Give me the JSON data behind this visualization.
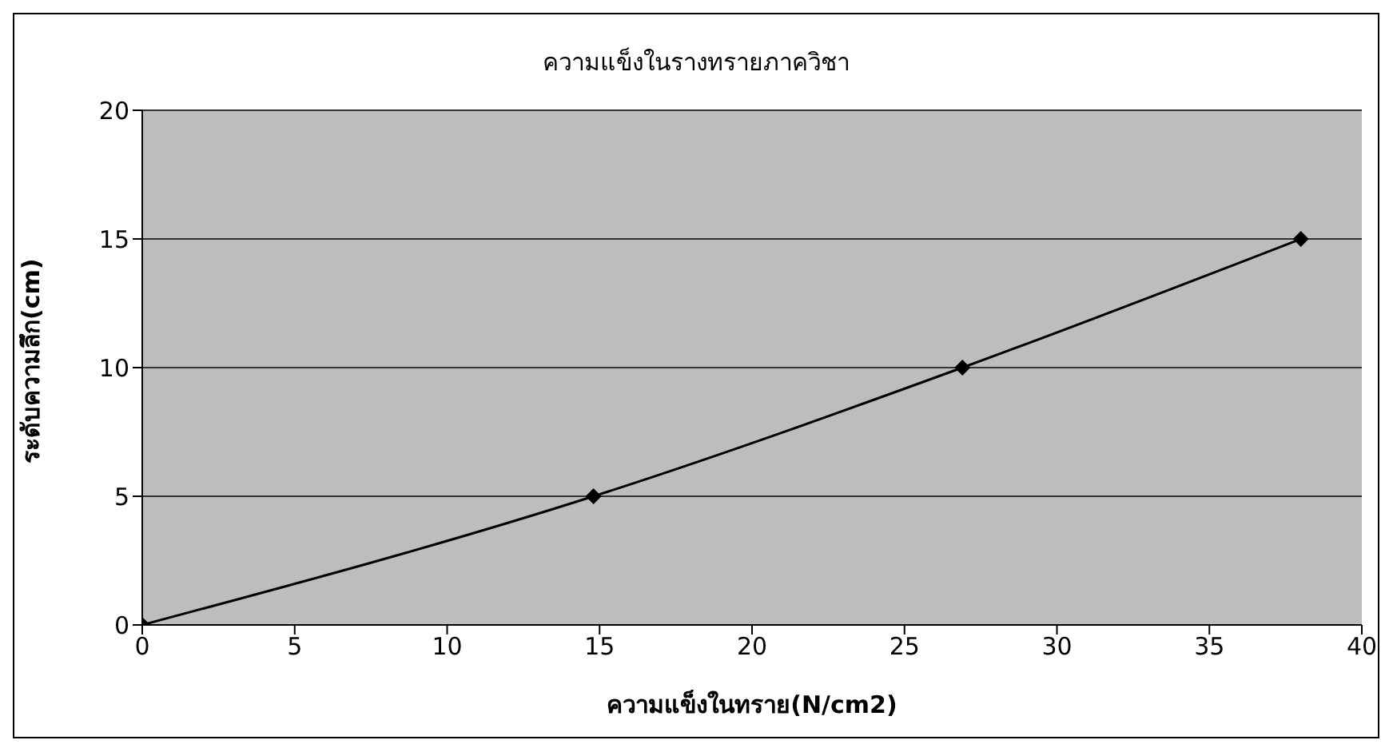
{
  "chart_data": {
    "type": "line",
    "title": "ความแข็งในรางทรายภาควิชา",
    "xlabel": "ความแข็งในทราย(N/cm2)",
    "ylabel": "ระดับความลึก(cm)",
    "x": [
      0,
      14.8,
      26.9,
      38
    ],
    "series": [
      {
        "color": "#000000",
        "values": [
          0,
          5,
          10,
          15
        ]
      }
    ],
    "xlim": [
      0,
      40
    ],
    "xticks": [
      0,
      5,
      10,
      15,
      20,
      25,
      30,
      35,
      40
    ],
    "ylim": [
      0,
      20
    ],
    "yticks": [
      0,
      5,
      10,
      15,
      20
    ],
    "grid": "y",
    "legend": false,
    "marker": "diamond",
    "line_style": "solid"
  }
}
